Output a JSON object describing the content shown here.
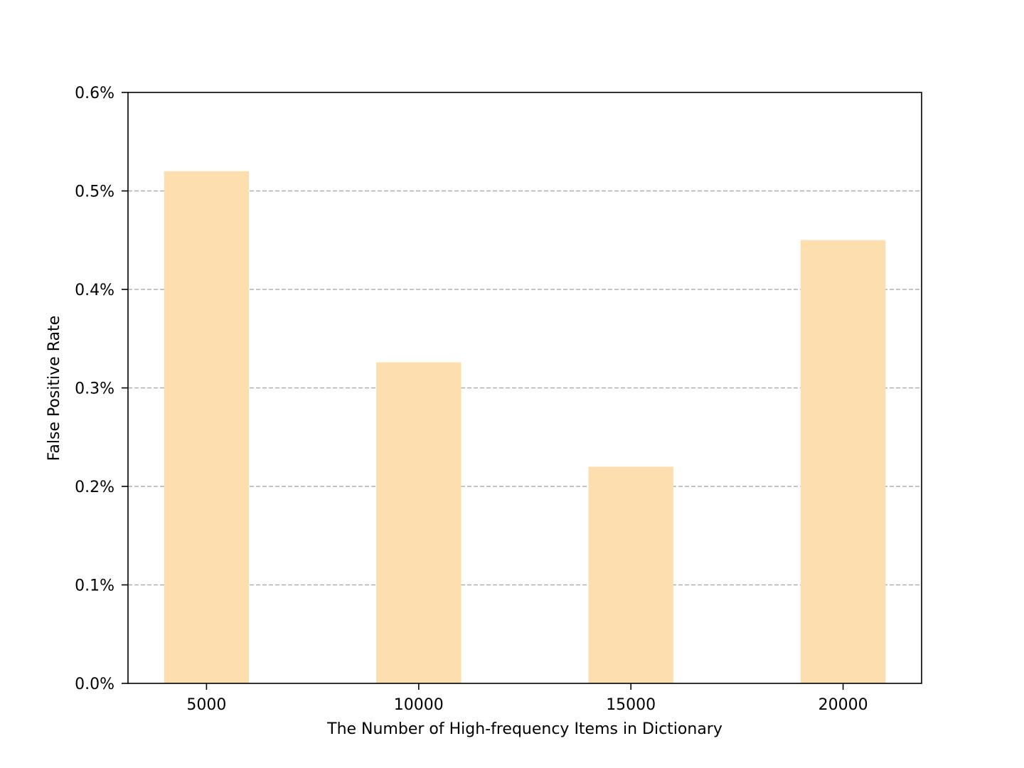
{
  "chart_data": {
    "type": "bar",
    "title": "",
    "xlabel": "The Number of High-frequency Items in Dictionary",
    "ylabel": "False Positive Rate",
    "categories": [
      "5000",
      "10000",
      "15000",
      "20000"
    ],
    "series": [
      {
        "values": [
          0.52,
          0.326,
          0.22,
          0.45
        ]
      }
    ],
    "y_unit": "%",
    "ylim": [
      0,
      0.6
    ],
    "yticks": [
      0,
      0.1,
      0.2,
      0.3,
      0.4,
      0.5,
      0.6
    ],
    "ytick_labels": [
      "0.0%",
      "0.1%",
      "0.2%",
      "0.3%",
      "0.4%",
      "0.5%",
      "0.6%"
    ],
    "grid": "y-dashed",
    "legend": "none",
    "bar_color": "#fddeae",
    "grid_color": "#b0b0b0"
  }
}
